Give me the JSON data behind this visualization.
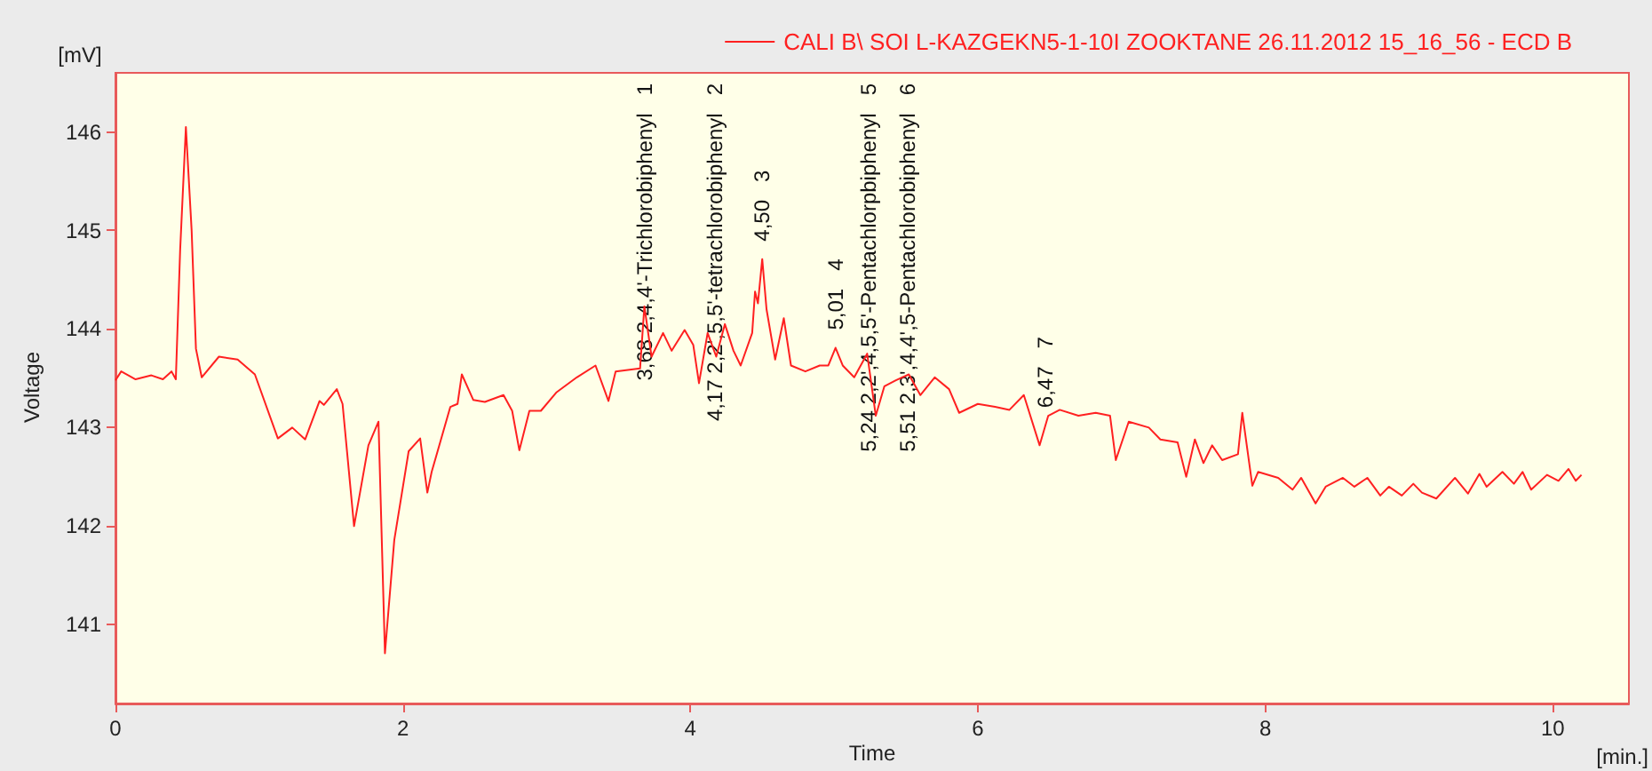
{
  "chart_data": {
    "type": "line",
    "xlabel": "Time",
    "ylabel": "Voltage",
    "legend": "top right",
    "grid": false,
    "marker": "none",
    "line_style": "solid",
    "xlim": [
      0,
      10.53
    ],
    "ylim": [
      140.2,
      146.6
    ],
    "xticks": [
      0,
      2,
      4,
      6,
      8,
      10
    ],
    "yticks": [
      141,
      142,
      143,
      144,
      145,
      146
    ],
    "series": [
      {
        "name": "CALI B\\ SOI L-KAZGEKN5-1-10I ZOOKTANE 26.11.2012 15_16_56 - ECD B",
        "color": "#ff2020",
        "x": [
          0,
          0.04,
          0.14,
          0.25,
          0.33,
          0.39,
          0.42,
          0.45,
          0.49,
          0.53,
          0.56,
          0.6,
          0.72,
          0.85,
          0.97,
          1.13,
          1.23,
          1.32,
          1.42,
          1.45,
          1.54,
          1.58,
          1.66,
          1.76,
          1.83,
          1.875,
          1.94,
          2.04,
          2.12,
          2.17,
          2.2,
          2.33,
          2.38,
          2.41,
          2.49,
          2.57,
          2.7,
          2.76,
          2.81,
          2.88,
          2.96,
          3.07,
          3.21,
          3.34,
          3.43,
          3.48,
          3.65,
          3.68,
          3.73,
          3.81,
          3.87,
          3.96,
          4.02,
          4.06,
          4.12,
          4.18,
          4.24,
          4.3,
          4.35,
          4.43,
          4.45,
          4.47,
          4.5,
          4.53,
          4.59,
          4.65,
          4.7,
          4.8,
          4.9,
          4.96,
          5.01,
          5.06,
          5.14,
          5.23,
          5.29,
          5.35,
          5.43,
          5.52,
          5.6,
          5.7,
          5.8,
          5.87,
          6,
          6.12,
          6.22,
          6.32,
          6.43,
          6.49,
          6.57,
          6.7,
          6.82,
          6.92,
          6.96,
          7.05,
          7.19,
          7.27,
          7.39,
          7.45,
          7.51,
          7.57,
          7.63,
          7.7,
          7.81,
          7.84,
          7.91,
          7.95,
          8.09,
          8.19,
          8.25,
          8.35,
          8.42,
          8.54,
          8.62,
          8.71,
          8.8,
          8.86,
          8.95,
          9.03,
          9.09,
          9.19,
          9.32,
          9.41,
          9.49,
          9.54,
          9.65,
          9.73,
          9.79,
          9.85,
          9.96,
          10.04,
          10.11,
          10.16,
          10.2
        ],
        "values": [
          143.48,
          143.57,
          143.49,
          143.53,
          143.49,
          143.57,
          143.49,
          144.8,
          146.05,
          145.0,
          143.8,
          143.51,
          143.72,
          143.69,
          143.54,
          142.89,
          143.0,
          142.88,
          143.27,
          143.23,
          143.39,
          143.24,
          142.0,
          142.82,
          143.06,
          140.71,
          141.86,
          142.76,
          142.89,
          142.34,
          142.55,
          143.21,
          143.24,
          143.54,
          143.28,
          143.26,
          143.33,
          143.17,
          142.77,
          143.17,
          143.17,
          143.36,
          143.51,
          143.63,
          143.27,
          143.57,
          143.6,
          144.23,
          143.72,
          143.96,
          143.78,
          143.99,
          143.84,
          143.45,
          143.96,
          143.72,
          144.05,
          143.78,
          143.63,
          143.96,
          144.38,
          144.26,
          144.71,
          144.2,
          143.69,
          144.11,
          143.63,
          143.57,
          143.63,
          143.63,
          143.81,
          143.63,
          143.51,
          143.75,
          143.12,
          143.42,
          143.48,
          143.54,
          143.33,
          143.51,
          143.39,
          143.15,
          143.24,
          143.21,
          143.18,
          143.33,
          142.82,
          143.12,
          143.18,
          143.12,
          143.15,
          143.12,
          142.67,
          143.06,
          143.0,
          142.88,
          142.85,
          142.5,
          142.88,
          142.64,
          142.82,
          142.67,
          142.73,
          143.15,
          142.41,
          142.55,
          142.49,
          142.37,
          142.49,
          142.23,
          142.4,
          142.49,
          142.4,
          142.49,
          142.31,
          142.4,
          142.31,
          142.43,
          142.34,
          142.28,
          142.49,
          142.33,
          142.53,
          142.4,
          142.55,
          142.43,
          142.55,
          142.37,
          142.52,
          142.46,
          142.58,
          142.46,
          142.52
        ]
      }
    ],
    "annotations": [
      "[mV]",
      "[min.]",
      {
        "text": "3,68 2,4,4'-Trichlorobiphenyl   1",
        "x": 3.68,
        "y": 144.23
      },
      {
        "text": "4,17 2,2',5,5'-tetrachlorobiphenyl   2",
        "x": 4.17,
        "y": 143.76
      },
      {
        "text": "4,50   3",
        "x": 4.5,
        "y": 144.71
      },
      {
        "text": "5,01   4",
        "x": 5.01,
        "y": 143.81
      },
      {
        "text": "5,24 2,2',4,5,5'-Pentachlorpbiphenyl   5",
        "x": 5.24,
        "y": 143.65
      },
      {
        "text": "5,51 2,3',4,4',5-Pentachlorobiphenyl   6",
        "x": 5.51,
        "y": 143.53
      },
      {
        "text": "6,47   7",
        "x": 6.47,
        "y": 143.02
      }
    ]
  }
}
